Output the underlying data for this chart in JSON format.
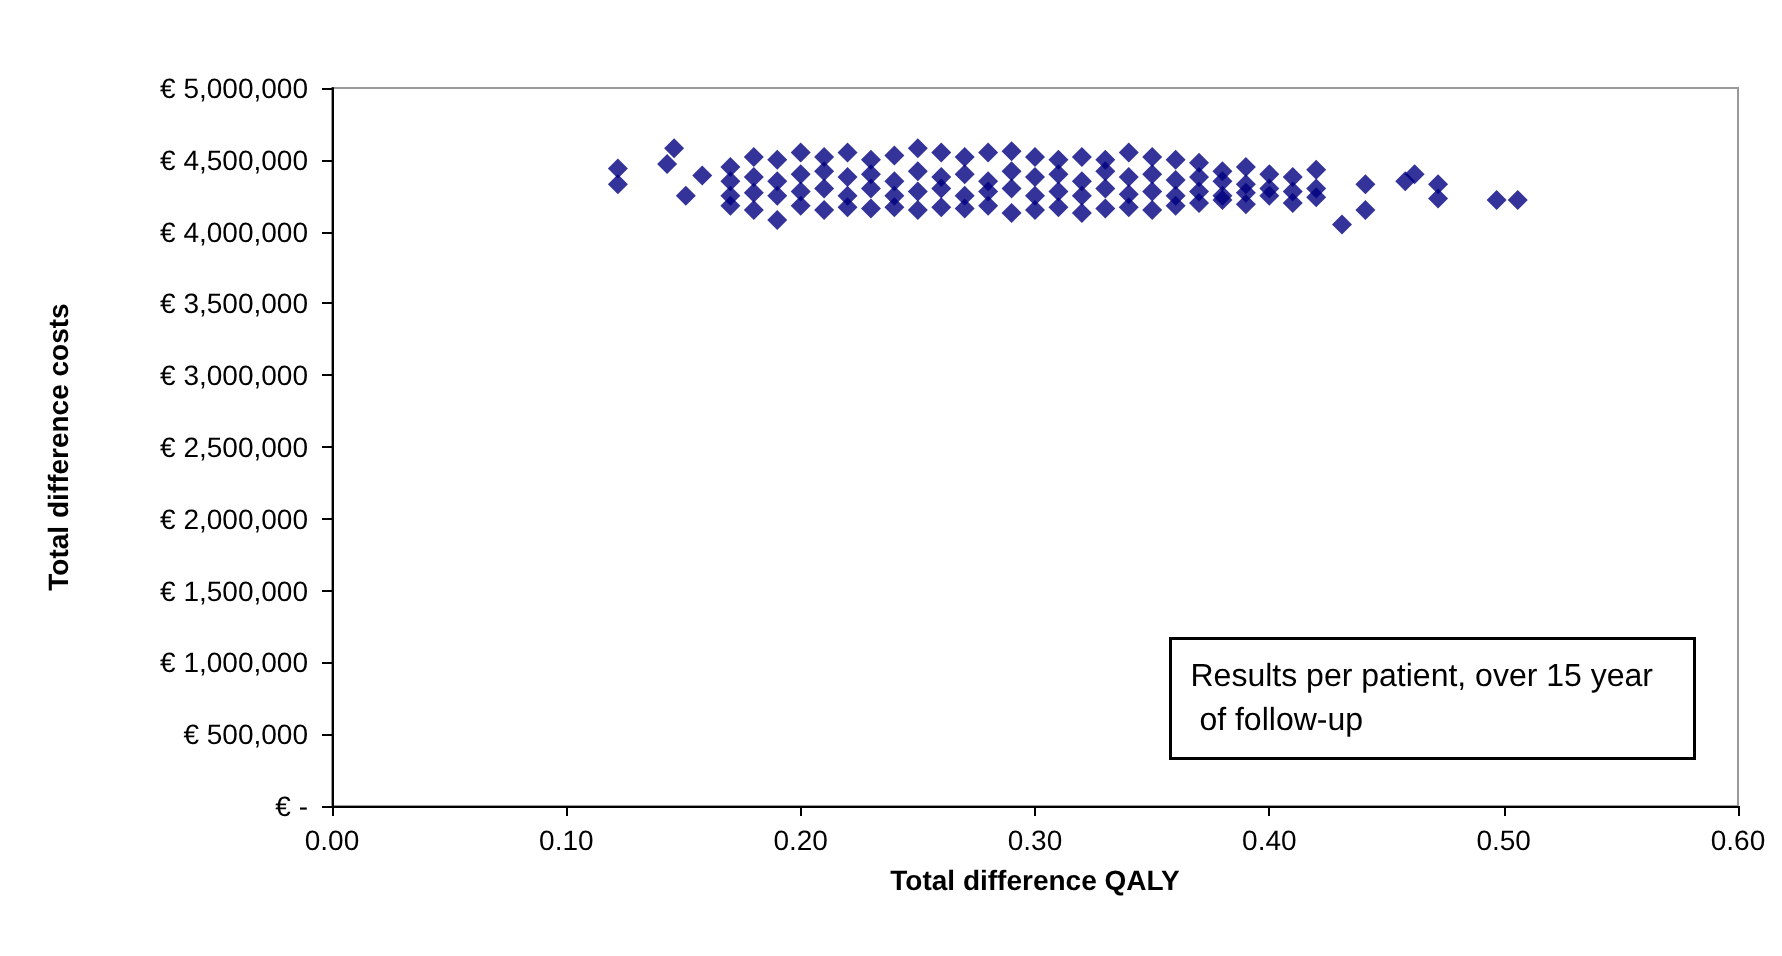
{
  "chart_data": {
    "type": "scatter",
    "xlabel": "Total difference QALY",
    "ylabel": "Total difference costs",
    "xlim": [
      0,
      0.6
    ],
    "xticks": [
      {
        "value": 0,
        "label": "0.00"
      },
      {
        "value": 0.1,
        "label": "0.10"
      },
      {
        "value": 0.2,
        "label": "0.20"
      },
      {
        "value": 0.3,
        "label": "0.30"
      },
      {
        "value": 0.4,
        "label": "0.40"
      },
      {
        "value": 0.5,
        "label": "0.50"
      },
      {
        "value": 0.6,
        "label": "0.60"
      }
    ],
    "ylim": [
      0,
      5000000
    ],
    "yticks": [
      {
        "value": 0,
        "label": "€ -"
      },
      {
        "value": 500000,
        "label": "€ 500,000"
      },
      {
        "value": 1000000,
        "label": "€ 1,000,000"
      },
      {
        "value": 1500000,
        "label": "€ 1,500,000"
      },
      {
        "value": 2000000,
        "label": "€ 2,000,000"
      },
      {
        "value": 2500000,
        "label": "€ 2,500,000"
      },
      {
        "value": 3000000,
        "label": "€ 3,000,000"
      },
      {
        "value": 3500000,
        "label": "€ 3,500,000"
      },
      {
        "value": 4000000,
        "label": "€ 4,000,000"
      },
      {
        "value": 4500000,
        "label": "€ 4,500,000"
      },
      {
        "value": 5000000,
        "label": "€ 5,000,000"
      }
    ],
    "marker": "diamond",
    "grid": false,
    "annotations": [
      "Results per patient, over 15 year of follow-up"
    ],
    "series": [
      {
        "color": "#000080",
        "x": [
          0.122,
          0.122,
          0.143,
          0.146,
          0.151,
          0.158,
          0.17,
          0.17,
          0.17,
          0.17,
          0.18,
          0.18,
          0.18,
          0.18,
          0.19,
          0.19,
          0.19,
          0.19,
          0.2,
          0.2,
          0.2,
          0.2,
          0.21,
          0.21,
          0.21,
          0.21,
          0.22,
          0.22,
          0.22,
          0.22,
          0.23,
          0.23,
          0.23,
          0.23,
          0.24,
          0.24,
          0.24,
          0.24,
          0.25,
          0.25,
          0.25,
          0.25,
          0.26,
          0.26,
          0.26,
          0.26,
          0.27,
          0.27,
          0.27,
          0.27,
          0.28,
          0.28,
          0.28,
          0.28,
          0.29,
          0.29,
          0.29,
          0.29,
          0.3,
          0.3,
          0.3,
          0.3,
          0.31,
          0.31,
          0.31,
          0.31,
          0.32,
          0.32,
          0.32,
          0.32,
          0.33,
          0.33,
          0.33,
          0.33,
          0.34,
          0.34,
          0.34,
          0.34,
          0.35,
          0.35,
          0.35,
          0.35,
          0.36,
          0.36,
          0.36,
          0.36,
          0.37,
          0.37,
          0.37,
          0.37,
          0.38,
          0.38,
          0.38,
          0.38,
          0.39,
          0.39,
          0.39,
          0.39,
          0.4,
          0.4,
          0.4,
          0.41,
          0.41,
          0.41,
          0.42,
          0.42,
          0.42,
          0.431,
          0.441,
          0.441,
          0.458,
          0.462,
          0.472,
          0.472,
          0.497,
          0.506
        ],
        "values": [
          4440000,
          4330000,
          4470000,
          4580000,
          4250000,
          4390000,
          4450000,
          4350000,
          4250000,
          4180000,
          4520000,
          4380000,
          4270000,
          4150000,
          4500000,
          4350000,
          4250000,
          4080000,
          4550000,
          4400000,
          4280000,
          4180000,
          4520000,
          4420000,
          4300000,
          4150000,
          4550000,
          4380000,
          4250000,
          4170000,
          4500000,
          4400000,
          4300000,
          4160000,
          4530000,
          4350000,
          4250000,
          4170000,
          4580000,
          4420000,
          4280000,
          4150000,
          4550000,
          4380000,
          4300000,
          4170000,
          4520000,
          4400000,
          4250000,
          4160000,
          4550000,
          4350000,
          4280000,
          4180000,
          4560000,
          4420000,
          4300000,
          4130000,
          4520000,
          4380000,
          4250000,
          4150000,
          4500000,
          4400000,
          4280000,
          4170000,
          4520000,
          4350000,
          4250000,
          4130000,
          4500000,
          4420000,
          4300000,
          4160000,
          4550000,
          4380000,
          4260000,
          4170000,
          4520000,
          4400000,
          4280000,
          4150000,
          4500000,
          4360000,
          4250000,
          4180000,
          4480000,
          4380000,
          4280000,
          4200000,
          4420000,
          4350000,
          4250000,
          4220000,
          4450000,
          4330000,
          4270000,
          4190000,
          4400000,
          4300000,
          4250000,
          4380000,
          4280000,
          4200000,
          4430000,
          4300000,
          4240000,
          4050000,
          4330000,
          4150000,
          4350000,
          4400000,
          4330000,
          4230000,
          4220000,
          4220000
        ]
      }
    ]
  }
}
